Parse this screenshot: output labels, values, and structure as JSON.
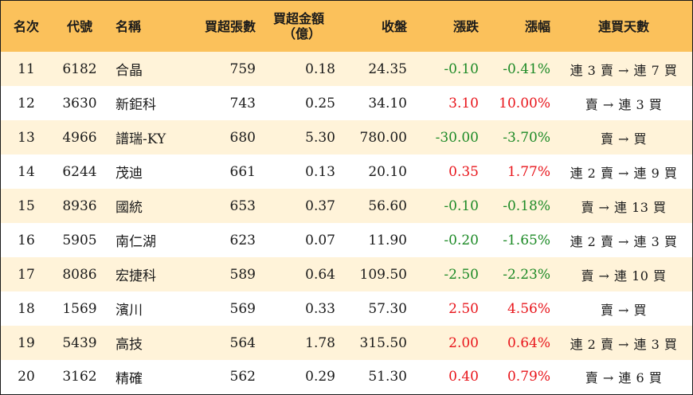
{
  "headers": {
    "rank": "名次",
    "code": "代號",
    "name": "名稱",
    "net_lots": "買超張數",
    "amount_line1": "買超金額",
    "amount_line2": "（億）",
    "close": "收盤",
    "change": "漲跌",
    "pct": "漲幅",
    "streak": "連買天數"
  },
  "colors": {
    "header_bg": "#fbc15b",
    "stripe_bg": "#fff3d9",
    "up": "#e8151b",
    "down": "#1d8a26"
  },
  "rows": [
    {
      "rank": "11",
      "code": "6182",
      "name": "合晶",
      "net_lots": "759",
      "amount": "0.18",
      "close": "24.35",
      "change": "-0.10",
      "pct": "-0.41%",
      "dir": "neg",
      "streak": "連 3 賣 → 連 7 買"
    },
    {
      "rank": "12",
      "code": "3630",
      "name": "新鉅科",
      "net_lots": "743",
      "amount": "0.25",
      "close": "34.10",
      "change": "3.10",
      "pct": "10.00%",
      "dir": "pos",
      "streak": "賣 → 連 3 買"
    },
    {
      "rank": "13",
      "code": "4966",
      "name": "譜瑞-KY",
      "net_lots": "680",
      "amount": "5.30",
      "close": "780.00",
      "change": "-30.00",
      "pct": "-3.70%",
      "dir": "neg",
      "streak": "賣 → 買"
    },
    {
      "rank": "14",
      "code": "6244",
      "name": "茂迪",
      "net_lots": "661",
      "amount": "0.13",
      "close": "20.10",
      "change": "0.35",
      "pct": "1.77%",
      "dir": "pos",
      "streak": "連 2 賣 → 連 9 買"
    },
    {
      "rank": "15",
      "code": "8936",
      "name": "國統",
      "net_lots": "653",
      "amount": "0.37",
      "close": "56.60",
      "change": "-0.10",
      "pct": "-0.18%",
      "dir": "neg",
      "streak": "賣 → 連 13 買"
    },
    {
      "rank": "16",
      "code": "5905",
      "name": "南仁湖",
      "net_lots": "623",
      "amount": "0.07",
      "close": "11.90",
      "change": "-0.20",
      "pct": "-1.65%",
      "dir": "neg",
      "streak": "連 2 賣 → 連 3 買"
    },
    {
      "rank": "17",
      "code": "8086",
      "name": "宏捷科",
      "net_lots": "589",
      "amount": "0.64",
      "close": "109.50",
      "change": "-2.50",
      "pct": "-2.23%",
      "dir": "neg",
      "streak": "賣 → 連 10 買"
    },
    {
      "rank": "18",
      "code": "1569",
      "name": "濱川",
      "net_lots": "569",
      "amount": "0.33",
      "close": "57.30",
      "change": "2.50",
      "pct": "4.56%",
      "dir": "pos",
      "streak": "賣 → 買"
    },
    {
      "rank": "19",
      "code": "5439",
      "name": "高技",
      "net_lots": "564",
      "amount": "1.78",
      "close": "315.50",
      "change": "2.00",
      "pct": "0.64%",
      "dir": "pos",
      "streak": "連 2 賣 → 連 3 買"
    },
    {
      "rank": "20",
      "code": "3162",
      "name": "精確",
      "net_lots": "562",
      "amount": "0.29",
      "close": "51.30",
      "change": "0.40",
      "pct": "0.79%",
      "dir": "pos",
      "streak": "賣 → 連 6 買"
    }
  ]
}
